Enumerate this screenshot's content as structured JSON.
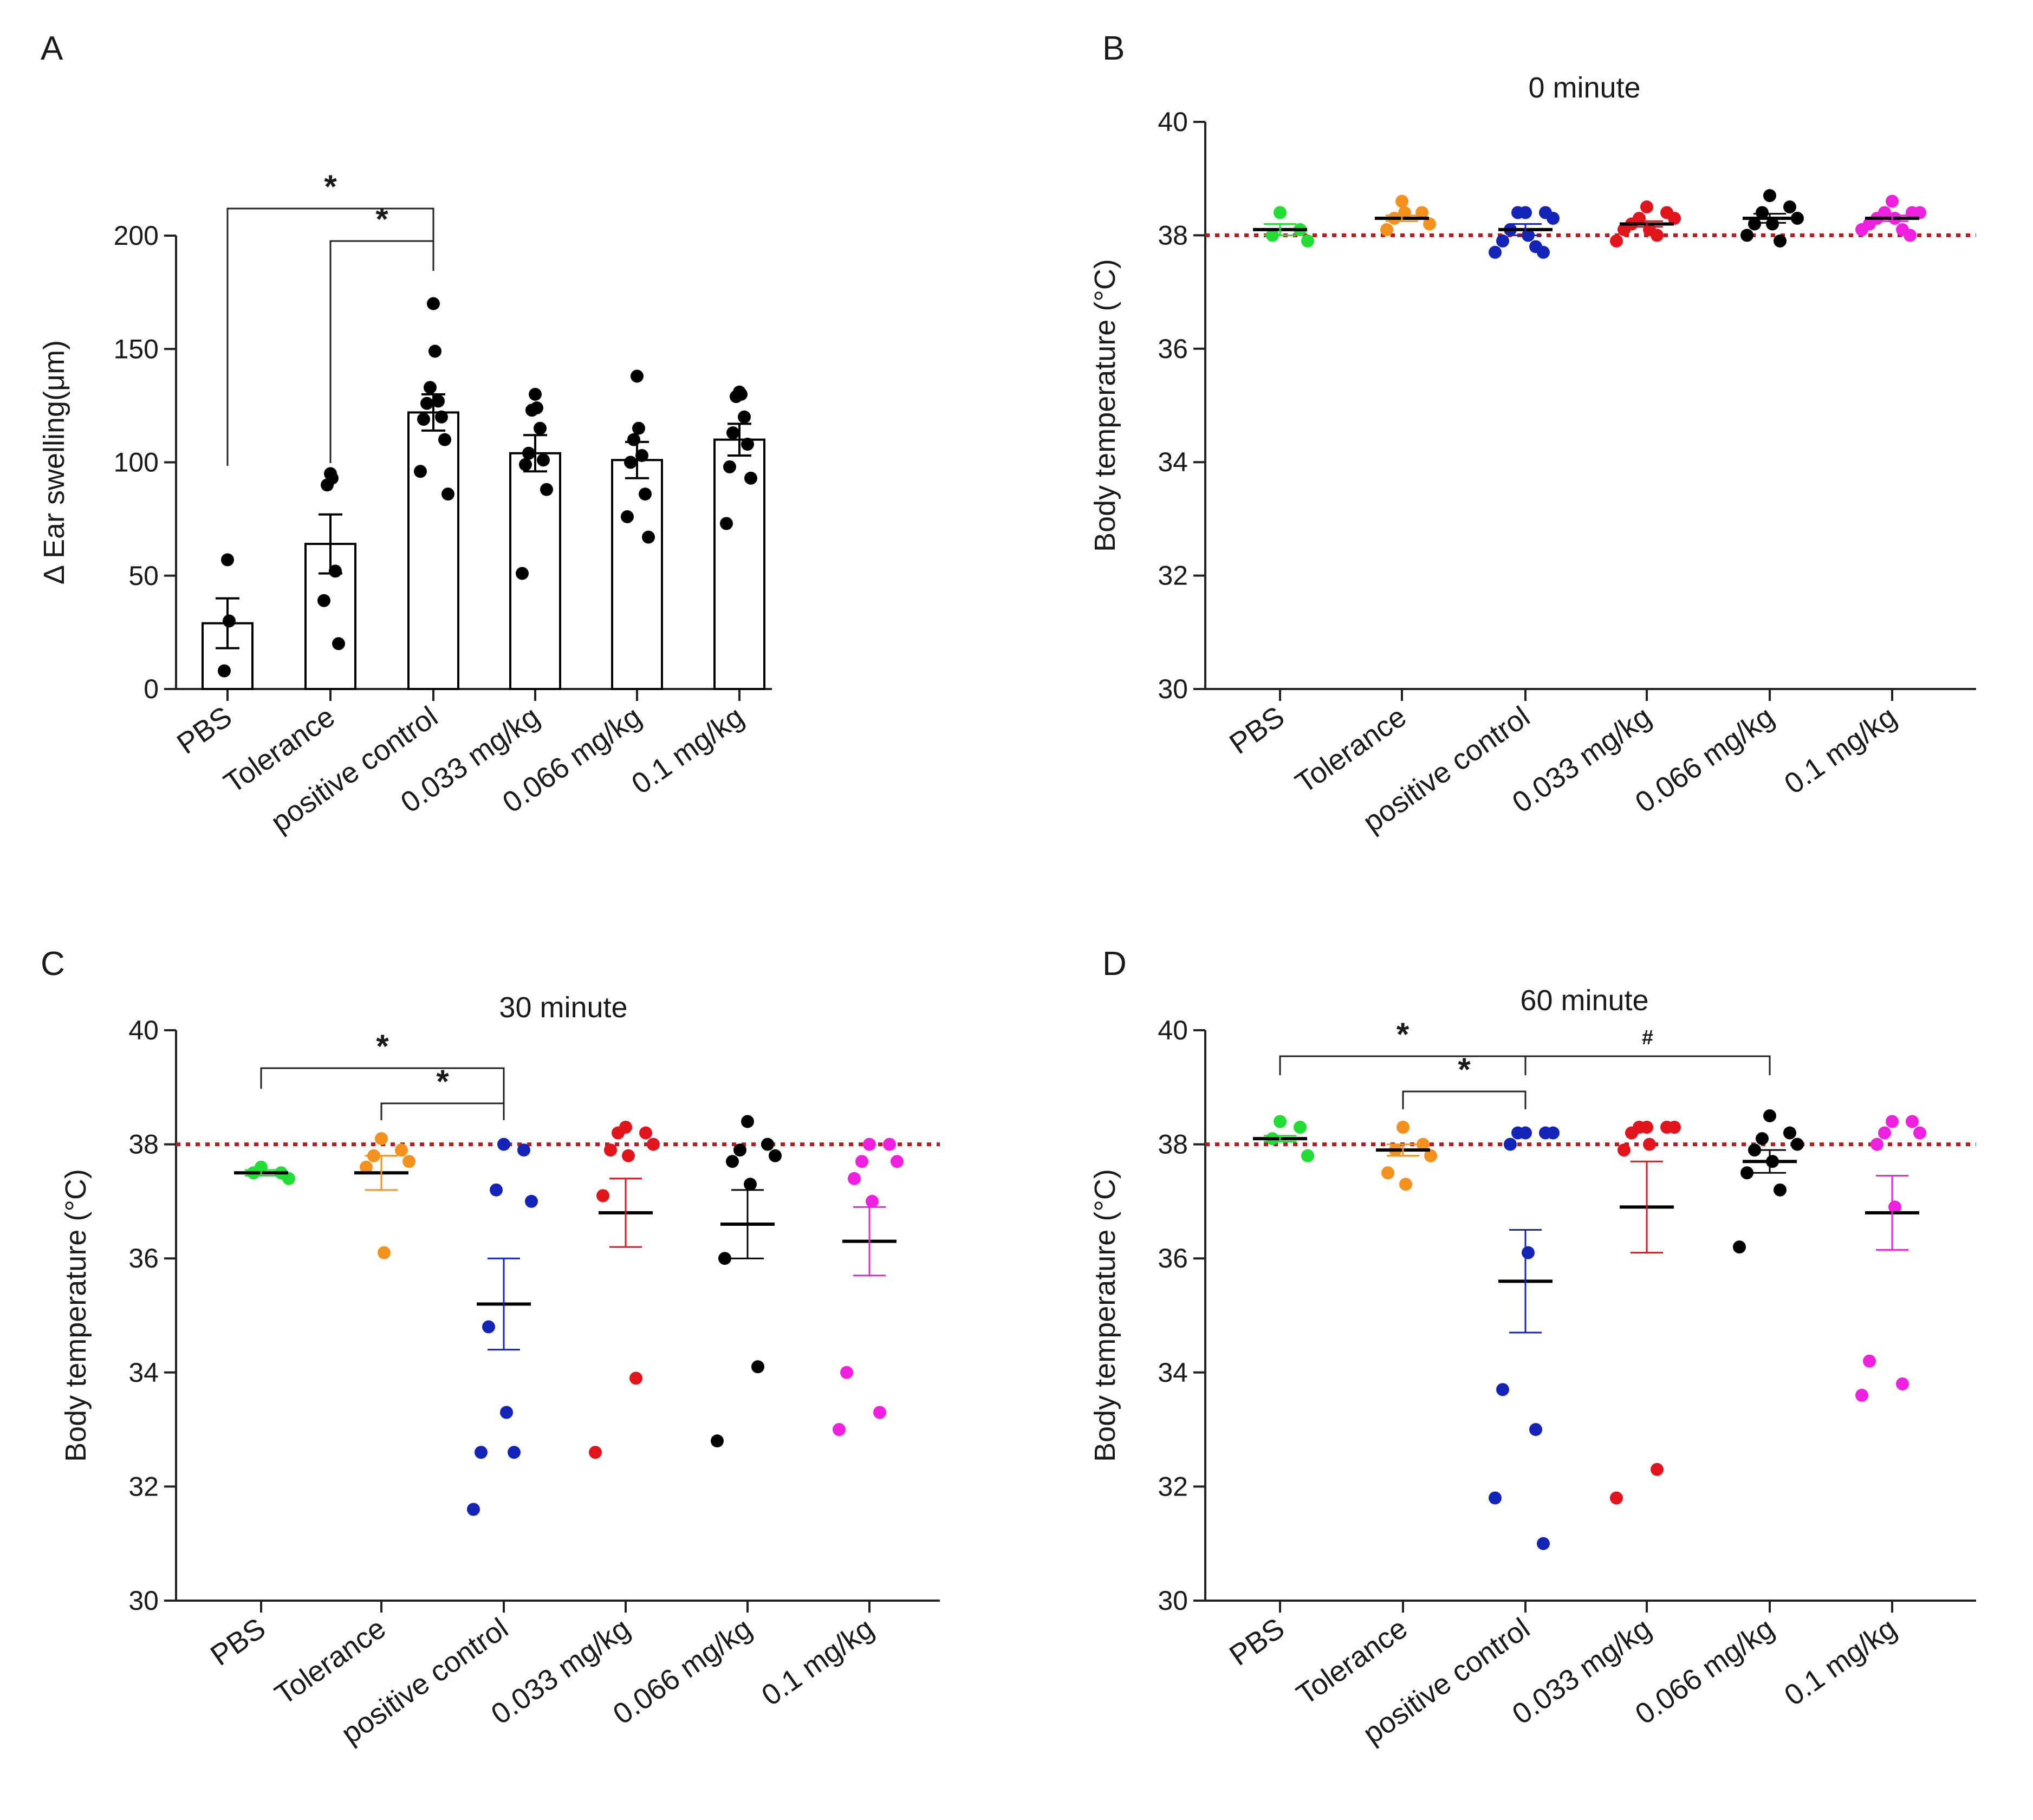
{
  "chart_data": [
    {
      "panel": "A",
      "type": "bar",
      "title": "",
      "ylabel": "Δ Ear swelling(μm)",
      "xlabel": "",
      "ylim": [
        0,
        200
      ],
      "yticks": [
        0,
        50,
        100,
        150,
        200
      ],
      "categories": [
        "PBS",
        "Tolerance",
        "positive control",
        "0.033 mg/kg",
        "0.066 mg/kg",
        "0.1 mg/kg"
      ],
      "means": [
        29,
        64,
        122,
        104,
        101,
        110
      ],
      "sem": [
        11,
        13,
        8,
        8,
        8,
        7
      ],
      "points": [
        [
          57,
          30,
          8
        ],
        [
          95,
          93,
          90,
          52,
          39,
          20
        ],
        [
          170,
          149,
          133,
          127,
          126,
          120,
          119,
          110,
          96,
          86
        ],
        [
          130,
          124,
          123,
          115,
          104,
          101,
          99,
          88,
          51
        ],
        [
          138,
          115,
          110,
          103,
          100,
          86,
          76,
          67
        ],
        [
          131,
          130,
          129,
          120,
          113,
          108,
          98,
          93,
          73
        ]
      ],
      "point_colors": [
        "#000000",
        "#000000",
        "#000000",
        "#000000",
        "#000000",
        "#000000"
      ],
      "bar_outline": "#000000",
      "significance": [
        {
          "from": 0,
          "to": 2,
          "label": "*"
        },
        {
          "from": 1,
          "to": 2,
          "label": "*"
        }
      ]
    },
    {
      "panel": "B",
      "type": "scatter",
      "title": "0 minute",
      "ylabel": "Body temperature (°C)",
      "xlabel": "",
      "ylim": [
        30,
        40
      ],
      "yticks": [
        30,
        32,
        34,
        36,
        38,
        40
      ],
      "reference_line": 38,
      "reference_color": "#c0181d",
      "categories": [
        "PBS",
        "Tolerance",
        "positive control",
        "0.033 mg/kg",
        "0.066 mg/kg",
        "0.1 mg/kg"
      ],
      "means": [
        38.1,
        38.3,
        38.1,
        38.2,
        38.3,
        38.3
      ],
      "sem": [
        0.1,
        0.05,
        0.1,
        0.05,
        0.08,
        0.05
      ],
      "points": [
        [
          38.4,
          38.1,
          38.0,
          37.9
        ],
        [
          38.6,
          38.4,
          38.3,
          38.2,
          38.1,
          38.4
        ],
        [
          38.4,
          38.4,
          38.4,
          38.3,
          38.1,
          38.0,
          37.9,
          37.8,
          37.7,
          37.7
        ],
        [
          38.5,
          38.4,
          38.3,
          38.3,
          38.2,
          38.1,
          38.1,
          38.0,
          37.9
        ],
        [
          38.7,
          38.5,
          38.4,
          38.3,
          38.2,
          38.2,
          38.0,
          37.9
        ],
        [
          38.6,
          38.4,
          38.4,
          38.4,
          38.3,
          38.3,
          38.2,
          38.1,
          38.1,
          38.0
        ]
      ],
      "point_colors": [
        "#22dd33",
        "#f5921e",
        "#1424b8",
        "#e2141c",
        "#000000",
        "#f020e0"
      ],
      "significance": []
    },
    {
      "panel": "C",
      "type": "scatter",
      "title": "30 minute",
      "ylabel": "Body temperature (°C)",
      "xlabel": "",
      "ylim": [
        30,
        40
      ],
      "yticks": [
        30,
        32,
        34,
        36,
        38,
        40
      ],
      "reference_line": 38,
      "reference_color": "#c0181d",
      "categories": [
        "PBS",
        "Tolerance",
        "positive control",
        "0.033 mg/kg",
        "0.066 mg/kg",
        "0.1 mg/kg"
      ],
      "means": [
        37.5,
        37.5,
        35.2,
        36.8,
        36.6,
        36.3
      ],
      "sem": [
        0.05,
        0.3,
        0.8,
        0.6,
        0.6,
        0.6
      ],
      "points": [
        [
          37.6,
          37.5,
          37.5,
          37.4
        ],
        [
          38.1,
          37.9,
          37.8,
          37.7,
          37.6,
          36.1
        ],
        [
          38.0,
          37.9,
          37.2,
          37.0,
          34.8,
          33.3,
          32.6,
          32.6,
          31.6
        ],
        [
          38.3,
          38.2,
          38.2,
          38.0,
          37.9,
          37.8,
          37.1,
          33.9,
          32.6
        ],
        [
          38.4,
          38.0,
          37.9,
          37.8,
          37.7,
          37.3,
          36.0,
          34.1,
          32.8
        ],
        [
          38.0,
          38.0,
          37.7,
          37.7,
          37.4,
          37.0,
          34.0,
          33.3,
          33.0
        ]
      ],
      "point_colors": [
        "#22dd33",
        "#f5921e",
        "#1424b8",
        "#e2141c",
        "#000000",
        "#f020e0"
      ],
      "significance": [
        {
          "from": 0,
          "to": 2,
          "label": "*"
        },
        {
          "from": 1,
          "to": 2,
          "label": "*"
        }
      ]
    },
    {
      "panel": "D",
      "type": "scatter",
      "title": "60 minute",
      "ylabel": "Body temperature (°C)",
      "xlabel": "",
      "ylim": [
        30,
        40
      ],
      "yticks": [
        30,
        32,
        34,
        36,
        38,
        40
      ],
      "reference_line": 38,
      "reference_color": "#c0181d",
      "categories": [
        "PBS",
        "Tolerance",
        "positive control",
        "0.033 mg/kg",
        "0.066 mg/kg",
        "0.1 mg/kg"
      ],
      "means": [
        38.1,
        37.9,
        35.6,
        36.9,
        37.7,
        36.8
      ],
      "sem": [
        0.05,
        0.1,
        0.9,
        0.8,
        0.2,
        0.65
      ],
      "points": [
        [
          38.4,
          38.3,
          38.1,
          37.8
        ],
        [
          38.3,
          38.0,
          37.9,
          37.8,
          37.5,
          37.3
        ],
        [
          38.2,
          38.2,
          38.2,
          38.2,
          38.0,
          36.1,
          33.7,
          33.0,
          31.8,
          31.0
        ],
        [
          38.3,
          38.3,
          38.3,
          38.3,
          38.2,
          38.0,
          37.9,
          32.3,
          31.8
        ],
        [
          38.5,
          38.2,
          38.1,
          38.0,
          37.9,
          37.7,
          37.5,
          37.2,
          36.2
        ],
        [
          38.4,
          38.4,
          38.2,
          38.2,
          38.0,
          36.9,
          34.2,
          33.8,
          33.6
        ]
      ],
      "point_colors": [
        "#22dd33",
        "#f5921e",
        "#1424b8",
        "#e2141c",
        "#000000",
        "#f020e0"
      ],
      "significance": [
        {
          "from": 0,
          "to": 2,
          "label": "*"
        },
        {
          "from": 1,
          "to": 2,
          "label": "*"
        },
        {
          "from": 2,
          "to": 4,
          "label": "#"
        }
      ]
    }
  ]
}
